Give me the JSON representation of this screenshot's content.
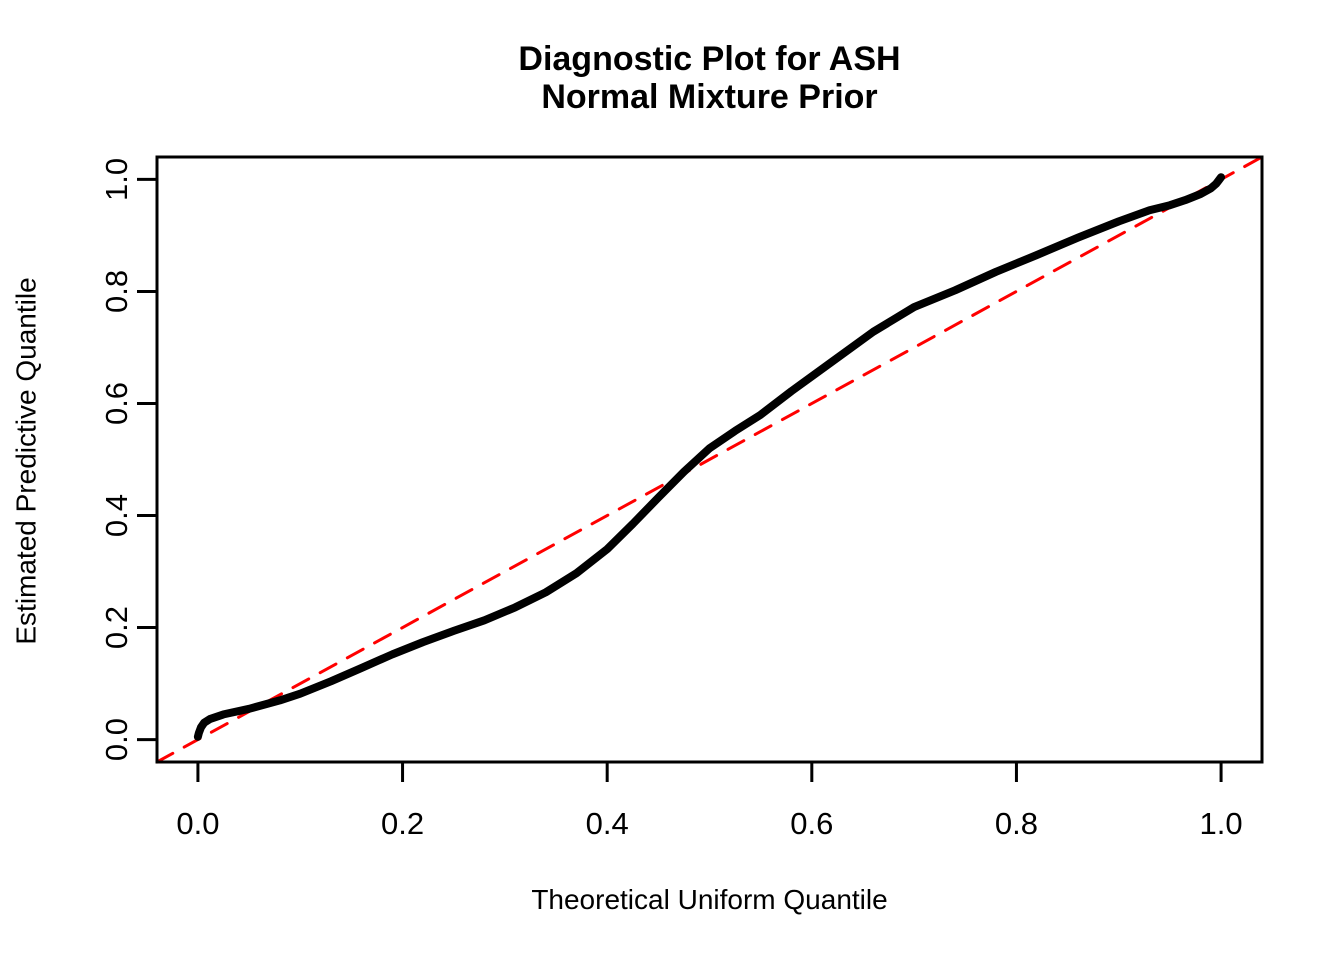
{
  "title": {
    "line1": "Diagnostic Plot for ASH",
    "line2": "Normal Mixture Prior"
  },
  "axes": {
    "x": {
      "label": "Theoretical Uniform Quantile",
      "tick_labels": [
        "0.0",
        "0.2",
        "0.4",
        "0.6",
        "0.8",
        "1.0"
      ]
    },
    "y": {
      "label": "Estimated Predictive Quantile",
      "tick_labels": [
        "0.0",
        "0.2",
        "0.4",
        "0.6",
        "0.8",
        "1.0"
      ]
    }
  },
  "colors": {
    "curve": "#000000",
    "reference_line": "#FF0000",
    "axis": "#000000",
    "text": "#000000",
    "background": "#FFFFFF"
  },
  "chart_data": {
    "type": "line",
    "title": "Diagnostic Plot for ASH — Normal Mixture Prior",
    "xlabel": "Theoretical Uniform Quantile",
    "ylabel": "Estimated Predictive Quantile",
    "xlim": [
      -0.04,
      1.04
    ],
    "ylim": [
      -0.04,
      1.04
    ],
    "x_ticks": [
      0,
      0.2,
      0.4,
      0.6,
      0.8,
      1.0
    ],
    "y_ticks": [
      0,
      0.2,
      0.4,
      0.6,
      0.8,
      1.0
    ],
    "grid": false,
    "legend": null,
    "series": [
      {
        "name": "reference-diagonal-y-equals-x",
        "color": "#FF0000",
        "stroke_width": 3,
        "dash": [
          18,
          13
        ],
        "points": [
          [
            -0.04,
            -0.04
          ],
          [
            1.04,
            1.04
          ]
        ]
      },
      {
        "name": "estimated-predictive-quantile-curve",
        "color": "#000000",
        "stroke_width": 8,
        "dash": null,
        "points": [
          [
            0.0,
            0.005
          ],
          [
            0.001,
            0.012
          ],
          [
            0.003,
            0.022
          ],
          [
            0.006,
            0.03
          ],
          [
            0.012,
            0.037
          ],
          [
            0.025,
            0.045
          ],
          [
            0.05,
            0.055
          ],
          [
            0.08,
            0.07
          ],
          [
            0.1,
            0.082
          ],
          [
            0.13,
            0.104
          ],
          [
            0.16,
            0.128
          ],
          [
            0.19,
            0.152
          ],
          [
            0.22,
            0.174
          ],
          [
            0.25,
            0.194
          ],
          [
            0.28,
            0.213
          ],
          [
            0.31,
            0.236
          ],
          [
            0.34,
            0.263
          ],
          [
            0.37,
            0.297
          ],
          [
            0.4,
            0.34
          ],
          [
            0.425,
            0.385
          ],
          [
            0.45,
            0.432
          ],
          [
            0.475,
            0.478
          ],
          [
            0.5,
            0.52
          ],
          [
            0.525,
            0.551
          ],
          [
            0.55,
            0.58
          ],
          [
            0.58,
            0.622
          ],
          [
            0.62,
            0.675
          ],
          [
            0.66,
            0.728
          ],
          [
            0.7,
            0.772
          ],
          [
            0.74,
            0.802
          ],
          [
            0.78,
            0.835
          ],
          [
            0.82,
            0.865
          ],
          [
            0.86,
            0.896
          ],
          [
            0.9,
            0.925
          ],
          [
            0.93,
            0.945
          ],
          [
            0.95,
            0.954
          ],
          [
            0.965,
            0.963
          ],
          [
            0.98,
            0.974
          ],
          [
            0.99,
            0.984
          ],
          [
            0.995,
            0.992
          ],
          [
            0.998,
            0.999
          ],
          [
            1.0,
            1.004
          ]
        ]
      }
    ]
  }
}
